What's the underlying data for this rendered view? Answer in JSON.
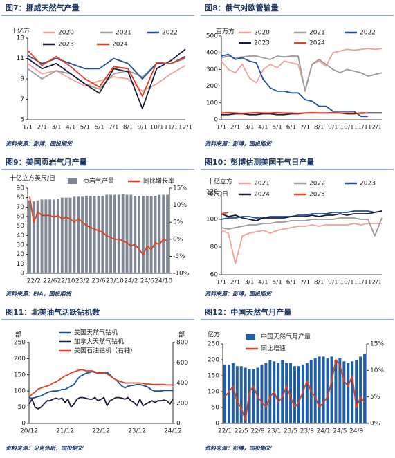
{
  "chart_data": [
    {
      "type": "line",
      "title": "图7：挪威天然气产量",
      "y_label": "十亿方",
      "source": "资料来源：彭博，国投期货",
      "categories": [
        "1/1",
        "2/1",
        "3/1",
        "4/1",
        "5/1",
        "6/1",
        "7/1",
        "8/1",
        "9/1",
        "10/1",
        "11/1",
        "12/1"
      ],
      "ylim": [
        5,
        13
      ],
      "yticks": [
        5,
        7,
        9,
        11,
        13
      ],
      "grid": false,
      "series": [
        {
          "name": "2020",
          "color": "#f4a09a",
          "values": [
            10.5,
            9.5,
            9.8,
            9.0,
            8.3,
            8.8,
            9.2,
            9.0,
            7.8,
            8.5,
            9.5,
            10.3
          ]
        },
        {
          "name": "2021",
          "color": "#9a9a9a",
          "values": [
            10.0,
            9.0,
            9.8,
            9.5,
            8.5,
            8.0,
            9.5,
            9.8,
            9.2,
            10.5,
            10.5,
            11.0
          ]
        },
        {
          "name": "2022",
          "color": "#1f4e9a",
          "values": [
            11.3,
            10.5,
            11.0,
            10.5,
            10.0,
            10.0,
            11.0,
            10.5,
            9.0,
            10.5,
            10.5,
            11.2
          ]
        },
        {
          "name": "2023",
          "color": "#1c1c3a",
          "values": [
            11.0,
            10.0,
            10.5,
            9.5,
            8.5,
            7.6,
            10.0,
            9.7,
            6.1,
            10.0,
            10.8,
            11.9
          ]
        },
        {
          "name": "2024",
          "color": "#e0401a",
          "values": [
            11.8,
            10.3,
            11.2,
            10.2,
            9.0,
            8.2,
            10.2,
            10.0,
            7.3,
            10.6,
            10.5,
            11.1
          ]
        }
      ]
    },
    {
      "type": "line",
      "title": "图8：俄气对欧管输量",
      "y_label": "百万方",
      "source": "资料来源：彭博，国投期货",
      "categories": [
        "1/1",
        null,
        "2/1",
        null,
        "3/1",
        null,
        "4/1",
        null,
        "5/1",
        null,
        "6/1",
        null,
        "7/1",
        null,
        "8/1",
        null,
        "9/1",
        null,
        "10/1",
        null,
        "11/1",
        null,
        "12/1",
        null
      ],
      "ylim": [
        0,
        500
      ],
      "yticks": [
        0,
        100,
        200,
        300,
        400,
        500
      ],
      "grid": false,
      "series": [
        {
          "name": "2020",
          "color": "#f4a09a",
          "values": [
            350,
            300,
            280,
            330,
            250,
            220,
            300,
            330,
            310,
            350,
            340,
            330,
            180,
            330,
            350,
            320,
            400,
            410,
            420,
            415,
            420,
            425,
            420,
            425
          ]
        },
        {
          "name": "2021",
          "color": "#9a9a9a",
          "values": [
            370,
            380,
            370,
            375,
            380,
            380,
            370,
            360,
            380,
            375,
            380,
            380,
            170,
            330,
            360,
            330,
            300,
            280,
            300,
            290,
            280,
            260,
            270,
            280
          ]
        },
        {
          "name": "2022",
          "color": "#1f4e9a",
          "values": [
            380,
            390,
            360,
            370,
            350,
            340,
            240,
            190,
            170,
            170,
            160,
            160,
            120,
            110,
            80,
            80,
            50,
            50,
            50,
            50,
            20,
            20,
            null,
            null
          ]
        },
        {
          "name": "2023",
          "color": "#1c1c3a",
          "values": [
            30,
            30,
            35,
            35,
            30,
            30,
            35,
            35,
            30,
            30,
            35,
            35,
            40,
            40,
            40,
            40,
            40,
            40,
            35,
            35,
            40,
            40,
            40,
            40
          ]
        },
        {
          "name": "2024",
          "color": "#e0401a",
          "values": [
            40,
            42,
            40,
            38,
            40,
            42,
            40,
            40,
            42,
            40,
            40,
            38,
            40,
            42,
            40,
            40,
            42,
            40,
            40,
            40,
            38,
            40,
            null,
            null
          ]
        }
      ]
    },
    {
      "type": "combo",
      "title": "图9：美国页岩气月产量",
      "y_label": "十亿立方英尺/日",
      "source": "资料来源：EIA，国投期货",
      "categories": [
        null,
        "22/2",
        null,
        null,
        null,
        "22/6",
        null,
        null,
        null,
        "22/10",
        null,
        null,
        null,
        "23/2",
        null,
        null,
        null,
        "23/6",
        null,
        null,
        null,
        "23/10",
        null,
        null,
        null,
        "24/2",
        null,
        null,
        null,
        "24/6",
        null,
        null,
        null,
        "24/10",
        null
      ],
      "ylim": [
        0,
        90
      ],
      "yticks": [
        0,
        10,
        20,
        30,
        40,
        50,
        60,
        70,
        80,
        90
      ],
      "y2lim": [
        -10,
        15
      ],
      "y2ticks": [
        {
          "value": -10,
          "label": "-10%"
        },
        {
          "value": -5,
          "label": "-5%"
        },
        {
          "value": 0,
          "label": "0%"
        },
        {
          "value": 5,
          "label": "5%"
        },
        {
          "value": 10,
          "label": "10%"
        },
        {
          "value": 15,
          "label": "15%"
        }
      ],
      "grid": false,
      "series": [
        {
          "name": "页岩气产量",
          "kind": "bar",
          "color": "#7f8796",
          "values": [
            77,
            76,
            77,
            78,
            78,
            78,
            78,
            79,
            80,
            80,
            80,
            81,
            81,
            81,
            82,
            82,
            82,
            82,
            82,
            83,
            83,
            83,
            83,
            84,
            83,
            83,
            82,
            82,
            82,
            82,
            82,
            82,
            83,
            83,
            83
          ]
        },
        {
          "name": "同比增长率",
          "kind": "line",
          "axis": "y2",
          "color": "#e0401a",
          "values": [
            12.5,
            5,
            8,
            7,
            7,
            7,
            6.5,
            7,
            6,
            6.5,
            6,
            5,
            6,
            5,
            4,
            3.5,
            3,
            2.5,
            2,
            1,
            0.5,
            0,
            0,
            -0.5,
            -1,
            -2,
            -1.5,
            -3,
            -4.5,
            -2,
            -3,
            -1,
            -1.5,
            0,
            -0.5
          ]
        }
      ]
    },
    {
      "type": "line",
      "title": "图10：彭博估测美国干气日产量",
      "y_label": [
        "十亿立方",
        "英尺/日"
      ],
      "source": "资料来源：彭博，国投期货",
      "categories": [
        "1/1",
        null,
        "2/1",
        null,
        "3/1",
        null,
        "4/1",
        null,
        "5/1",
        null,
        "6/1",
        null,
        "7/1",
        null,
        "8/1",
        null,
        "9/1",
        null,
        "10/1",
        null,
        "11/1",
        null,
        "12/1",
        null
      ],
      "ylim": [
        60,
        120
      ],
      "yticks": [
        60,
        80,
        100,
        120
      ],
      "grid": false,
      "series": [
        {
          "name": "2021",
          "color": "#f4a09a",
          "values": [
            92,
            90,
            68,
            88,
            90,
            91,
            92,
            90,
            92,
            93,
            94,
            95,
            95,
            96,
            95,
            96,
            96,
            96,
            96,
            97,
            96,
            97,
            97,
            97
          ]
        },
        {
          "name": "2022",
          "color": "#9a9a9a",
          "values": [
            94,
            93,
            94,
            95,
            96,
            96,
            97,
            97,
            98,
            98,
            99,
            99,
            99,
            100,
            100,
            100,
            100,
            101,
            101,
            101,
            100,
            100,
            88,
            101
          ]
        },
        {
          "name": "2023",
          "color": "#1f4e9a",
          "values": [
            100,
            101,
            101,
            102,
            102,
            101,
            101,
            102,
            102,
            102,
            102,
            103,
            103,
            104,
            104,
            104,
            105,
            105,
            105,
            106,
            106,
            106,
            105,
            106
          ]
        },
        {
          "name": "2024",
          "color": "#1c1c3a",
          "values": [
            104,
            102,
            103,
            101,
            100,
            99,
            101,
            101,
            101,
            101,
            102,
            102,
            102,
            103,
            102,
            103,
            103,
            104,
            103,
            104,
            104,
            104,
            105,
            106
          ]
        },
        {
          "name": "2025",
          "color": "#e0401a",
          "values": [
            104,
            105,
            null,
            null,
            null,
            null,
            null,
            null,
            null,
            null,
            null,
            null,
            null,
            null,
            null,
            null,
            null,
            null,
            null,
            null,
            null,
            null,
            null,
            null
          ]
        }
      ]
    },
    {
      "type": "line",
      "title": "图11：北美油气活跃钻机数",
      "y_label": "部",
      "y2_label": "部",
      "source": "资料来源：贝克休斯，国投期货",
      "categories": [
        "20/12",
        null,
        null,
        null,
        null,
        null,
        null,
        null,
        null,
        null,
        null,
        null,
        "21/12",
        null,
        null,
        null,
        null,
        null,
        null,
        null,
        null,
        null,
        null,
        null,
        "22/12",
        null,
        null,
        null,
        null,
        null,
        null,
        null,
        null,
        null,
        null,
        null,
        "23/12",
        null,
        null,
        null,
        null,
        null,
        null,
        null,
        null,
        null,
        null,
        null,
        "24/12"
      ],
      "ylim": [
        0,
        250
      ],
      "yticks": [
        0,
        50,
        100,
        150,
        200,
        250
      ],
      "y2lim": [
        0,
        800
      ],
      "y2ticks": [
        0,
        200,
        400,
        600,
        800
      ],
      "grid": false,
      "series": [
        {
          "name": "美国天然气钻机",
          "color": "#1f4e9a",
          "values": [
            80,
            78,
            80,
            83,
            85,
            90,
            95,
            98,
            100,
            100,
            102,
            105,
            105,
            110,
            115,
            120,
            135,
            145,
            150,
            155,
            157,
            160,
            158,
            155,
            155,
            155,
            158,
            150,
            140,
            135,
            125,
            115,
            110,
            115,
            117,
            118,
            120,
            120,
            117,
            115,
            110,
            103,
            100,
            100,
            100,
            102,
            102,
            102,
            102
          ]
        },
        {
          "name": "加拿大天然气钻机",
          "color": "#1c1c3a",
          "values": [
            60,
            75,
            50,
            45,
            50,
            60,
            70,
            70,
            75,
            78,
            75,
            78,
            65,
            75,
            50,
            60,
            75,
            80,
            80,
            78,
            75,
            75,
            80,
            70,
            75,
            80,
            55,
            70,
            75,
            80,
            80,
            78,
            75,
            80,
            70,
            65,
            55,
            75,
            55,
            60,
            65,
            70,
            65,
            70,
            70,
            72,
            70,
            60,
            75
          ]
        },
        {
          "name": "美国石油钻机（右轴）",
          "axis": "y2",
          "color": "#e0401a",
          "values": [
            260,
            290,
            310,
            340,
            350,
            360,
            370,
            380,
            400,
            410,
            430,
            450,
            470,
            480,
            500,
            510,
            520,
            530,
            530,
            520,
            520,
            520,
            510,
            500,
            500,
            500,
            490,
            470,
            450,
            430,
            420,
            410,
            400,
            400,
            400,
            400,
            400,
            400,
            395,
            390,
            390,
            385,
            385,
            385,
            385,
            385,
            380,
            380,
            380
          ]
        }
      ]
    },
    {
      "type": "combo",
      "title": "图12：中国天然气月产量",
      "y_label": "亿方",
      "source": "资料来源：彭博，国投期货",
      "categories": [
        "22/1",
        null,
        null,
        null,
        "22/5",
        null,
        null,
        null,
        "22/9",
        null,
        null,
        null,
        "23/1",
        null,
        null,
        null,
        "23/5",
        null,
        null,
        null,
        "23/9",
        null,
        null,
        null,
        "24/1",
        null,
        null,
        null,
        "24/5",
        null,
        null,
        null,
        "24/9",
        null,
        null
      ],
      "ylim": [
        0,
        250
      ],
      "yticks": [
        0,
        50,
        100,
        150,
        200,
        250
      ],
      "y2lim": [
        0,
        15
      ],
      "y2ticks": [
        {
          "value": 0,
          "label": "0%"
        },
        {
          "value": 5,
          "label": "5%"
        },
        {
          "value": 10,
          "label": "10%"
        },
        {
          "value": 15,
          "label": "15%"
        }
      ],
      "grid": false,
      "series": [
        {
          "name": "中国天然气月产量",
          "kind": "bar",
          "color": "#1f5fa8",
          "values": [
            185,
            185,
            190,
            180,
            180,
            175,
            170,
            170,
            175,
            185,
            190,
            200,
            195,
            190,
            200,
            190,
            190,
            180,
            180,
            185,
            190,
            200,
            205,
            210,
            210,
            205,
            210,
            200,
            205,
            195,
            190,
            195,
            200,
            210,
            218
          ]
        },
        {
          "name": "同比增速",
          "kind": "line",
          "axis": "y2",
          "color": "#e0401a",
          "values": [
            5,
            6,
            7,
            4,
            3,
            0.5,
            6,
            7,
            5,
            4,
            3,
            5,
            6,
            4,
            5,
            7,
            5,
            3,
            4,
            6,
            8,
            6,
            5,
            3,
            4,
            5,
            8,
            12,
            11,
            8,
            7,
            9,
            3,
            5,
            4
          ]
        }
      ]
    }
  ]
}
